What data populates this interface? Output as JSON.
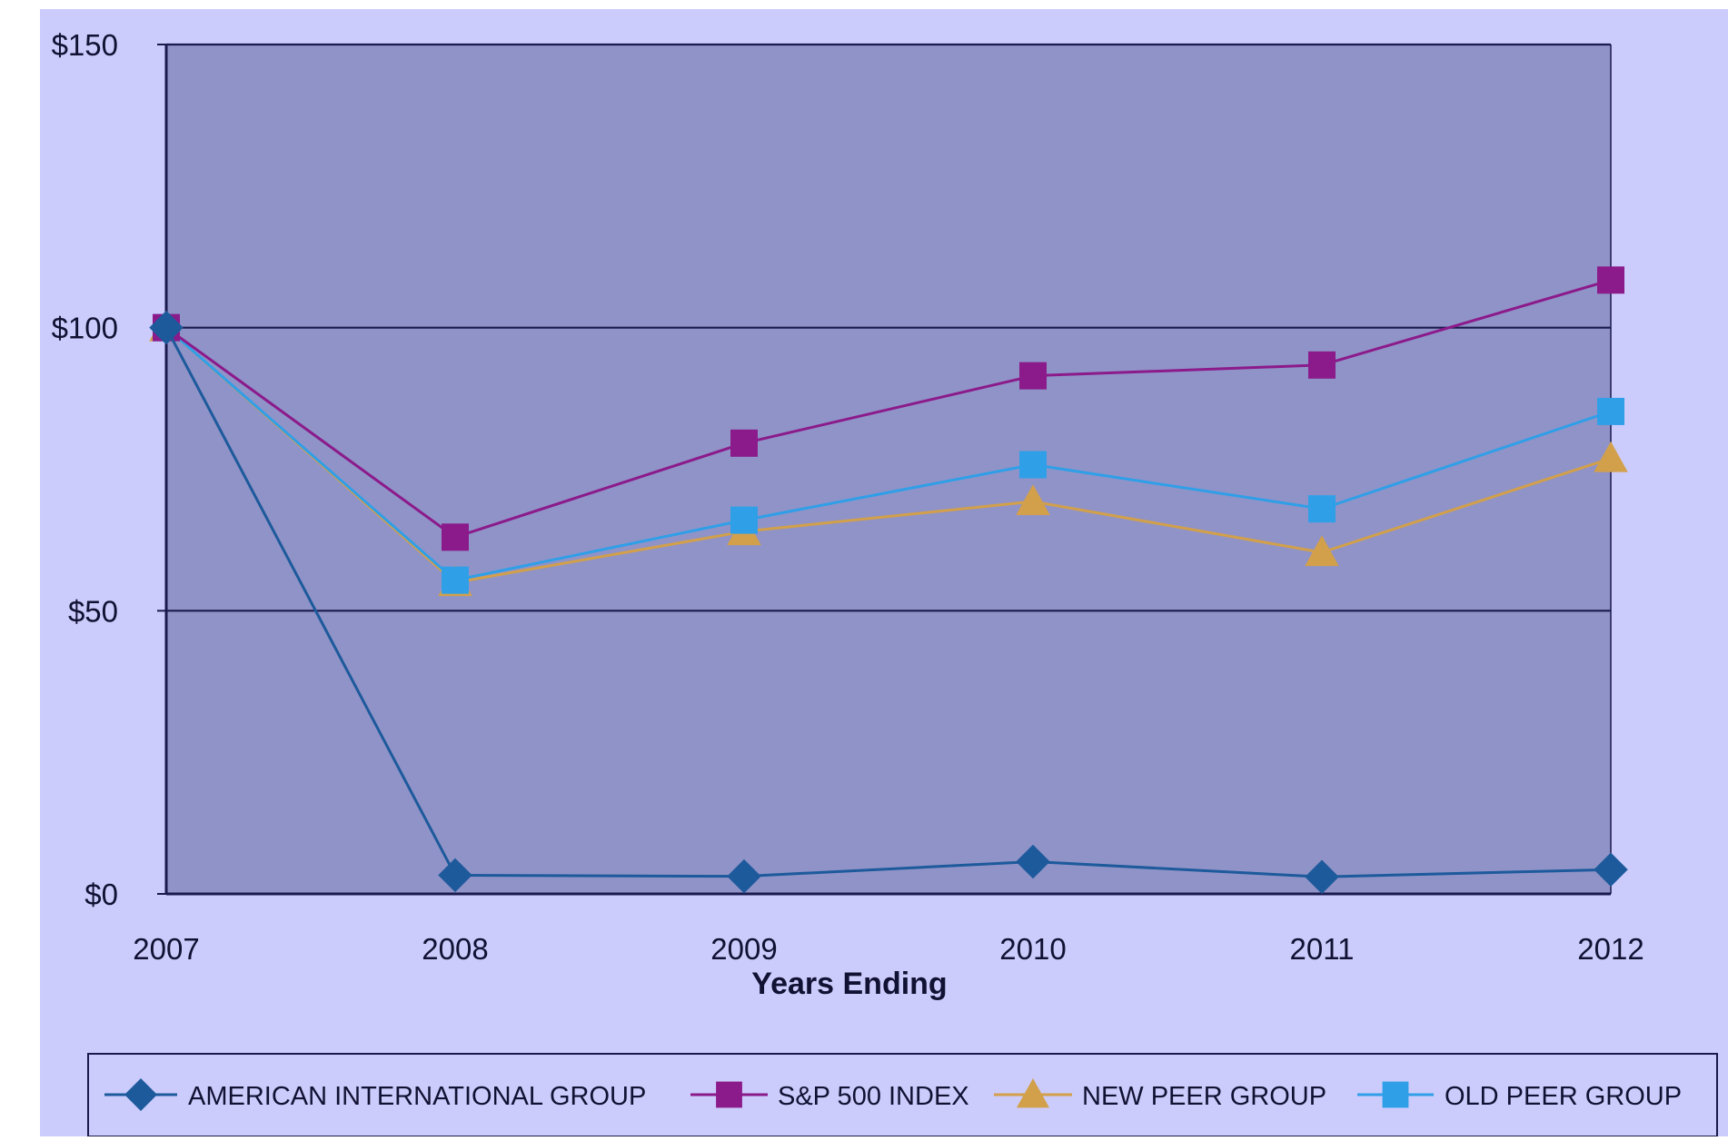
{
  "chart_data": {
    "type": "line",
    "title": "",
    "xlabel": "Years Ending",
    "ylabel": "",
    "categories": [
      "2007",
      "2008",
      "2009",
      "2010",
      "2011",
      "2012"
    ],
    "y_ticks": [
      "$0",
      "$50",
      "$100",
      "$150"
    ],
    "y_tick_values": [
      0,
      50,
      100,
      150
    ],
    "ylim": [
      0,
      150
    ],
    "grid": "horizontal",
    "legend_position": "bottom",
    "colors": {
      "figure_background": "#ccccfc",
      "plot_background": "#9093c7",
      "axis": "#1a1a4e",
      "text": "#111133"
    },
    "series": [
      {
        "name": "AMERICAN INTERNATIONAL GROUP",
        "values": [
          100,
          3.3,
          3.1,
          5.7,
          3.0,
          4.3
        ],
        "color": "#1d5a9c",
        "marker": "diamond"
      },
      {
        "name": "S&P 500 INDEX",
        "values": [
          100,
          63,
          79.6,
          91.5,
          93.4,
          108.4
        ],
        "color": "#8b1a8b",
        "marker": "square"
      },
      {
        "name": "NEW PEER GROUP",
        "values": [
          100,
          55,
          64,
          69.3,
          60.3,
          76.9
        ],
        "color": "#d2a04a",
        "marker": "triangle"
      },
      {
        "name": "OLD PEER GROUP",
        "values": [
          100,
          55.4,
          66,
          75.8,
          68,
          85.2
        ],
        "color": "#2f9fe8",
        "marker": "square"
      }
    ]
  }
}
